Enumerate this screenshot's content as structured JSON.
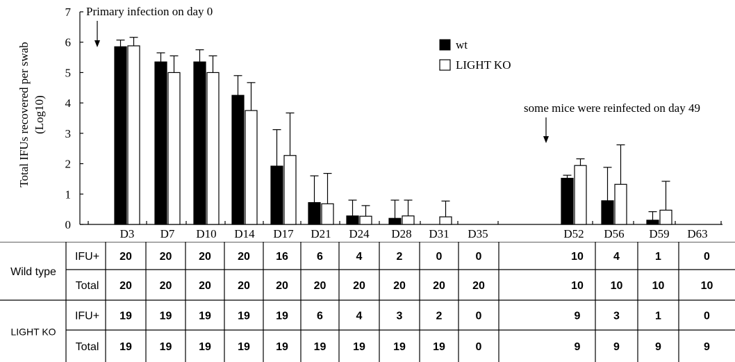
{
  "chart_data": {
    "type": "bar",
    "ylabel_line1": "Total IFUs recovered per swab",
    "ylabel_line2": "(Log10)",
    "ylim": [
      0,
      7
    ],
    "yticks": [
      "0",
      "1",
      "2",
      "3",
      "4",
      "5",
      "6",
      "7"
    ],
    "categories": [
      "D3",
      "D7",
      "D10",
      "D14",
      "D17",
      "D21",
      "D24",
      "D28",
      "D31",
      "D35",
      "D52",
      "D56",
      "D59",
      "D63"
    ],
    "series": [
      {
        "name": "wt",
        "color": "#000000",
        "values": [
          5.85,
          5.35,
          5.35,
          4.25,
          1.92,
          0.72,
          0.28,
          0.2,
          0,
          0,
          1.52,
          0.78,
          0.14,
          0
        ],
        "errors": [
          0.22,
          0.3,
          0.4,
          0.65,
          1.2,
          0.88,
          0.52,
          0.6,
          0,
          0,
          0.1,
          1.1,
          0.28,
          0
        ]
      },
      {
        "name": "LIGHT KO",
        "color": "#ffffff",
        "values": [
          5.88,
          5.0,
          5.0,
          3.75,
          2.27,
          0.68,
          0.27,
          0.28,
          0.25,
          0,
          1.94,
          1.32,
          0.47,
          0
        ],
        "errors": [
          0.28,
          0.55,
          0.55,
          0.92,
          1.4,
          1.0,
          0.35,
          0.52,
          0.52,
          0,
          0.22,
          1.3,
          0.95,
          0
        ]
      }
    ],
    "annotations": [
      {
        "text": "Primary infection on day 0"
      },
      {
        "text": "some mice were reinfected on day 49"
      }
    ],
    "legend_position": "top-right",
    "grid": false
  },
  "table": {
    "groups": [
      {
        "label": "Wild type",
        "rows": [
          {
            "label": "IFU+",
            "values": [
              "20",
              "20",
              "20",
              "20",
              "16",
              "6",
              "4",
              "2",
              "0",
              "0",
              "",
              "10",
              "4",
              "1",
              "0"
            ]
          },
          {
            "label": "Total",
            "values": [
              "20",
              "20",
              "20",
              "20",
              "20",
              "20",
              "20",
              "20",
              "20",
              "20",
              "",
              "10",
              "10",
              "10",
              "10"
            ]
          }
        ]
      },
      {
        "label": "LIGHT KO",
        "rows": [
          {
            "label": "IFU+",
            "values": [
              "19",
              "19",
              "19",
              "19",
              "19",
              "6",
              "4",
              "3",
              "2",
              "0",
              "",
              "9",
              "3",
              "1",
              "0"
            ]
          },
          {
            "label": "Total",
            "values": [
              "19",
              "19",
              "19",
              "19",
              "19",
              "19",
              "19",
              "19",
              "19",
              "0",
              "",
              "9",
              "9",
              "9",
              "9"
            ]
          }
        ]
      }
    ]
  }
}
